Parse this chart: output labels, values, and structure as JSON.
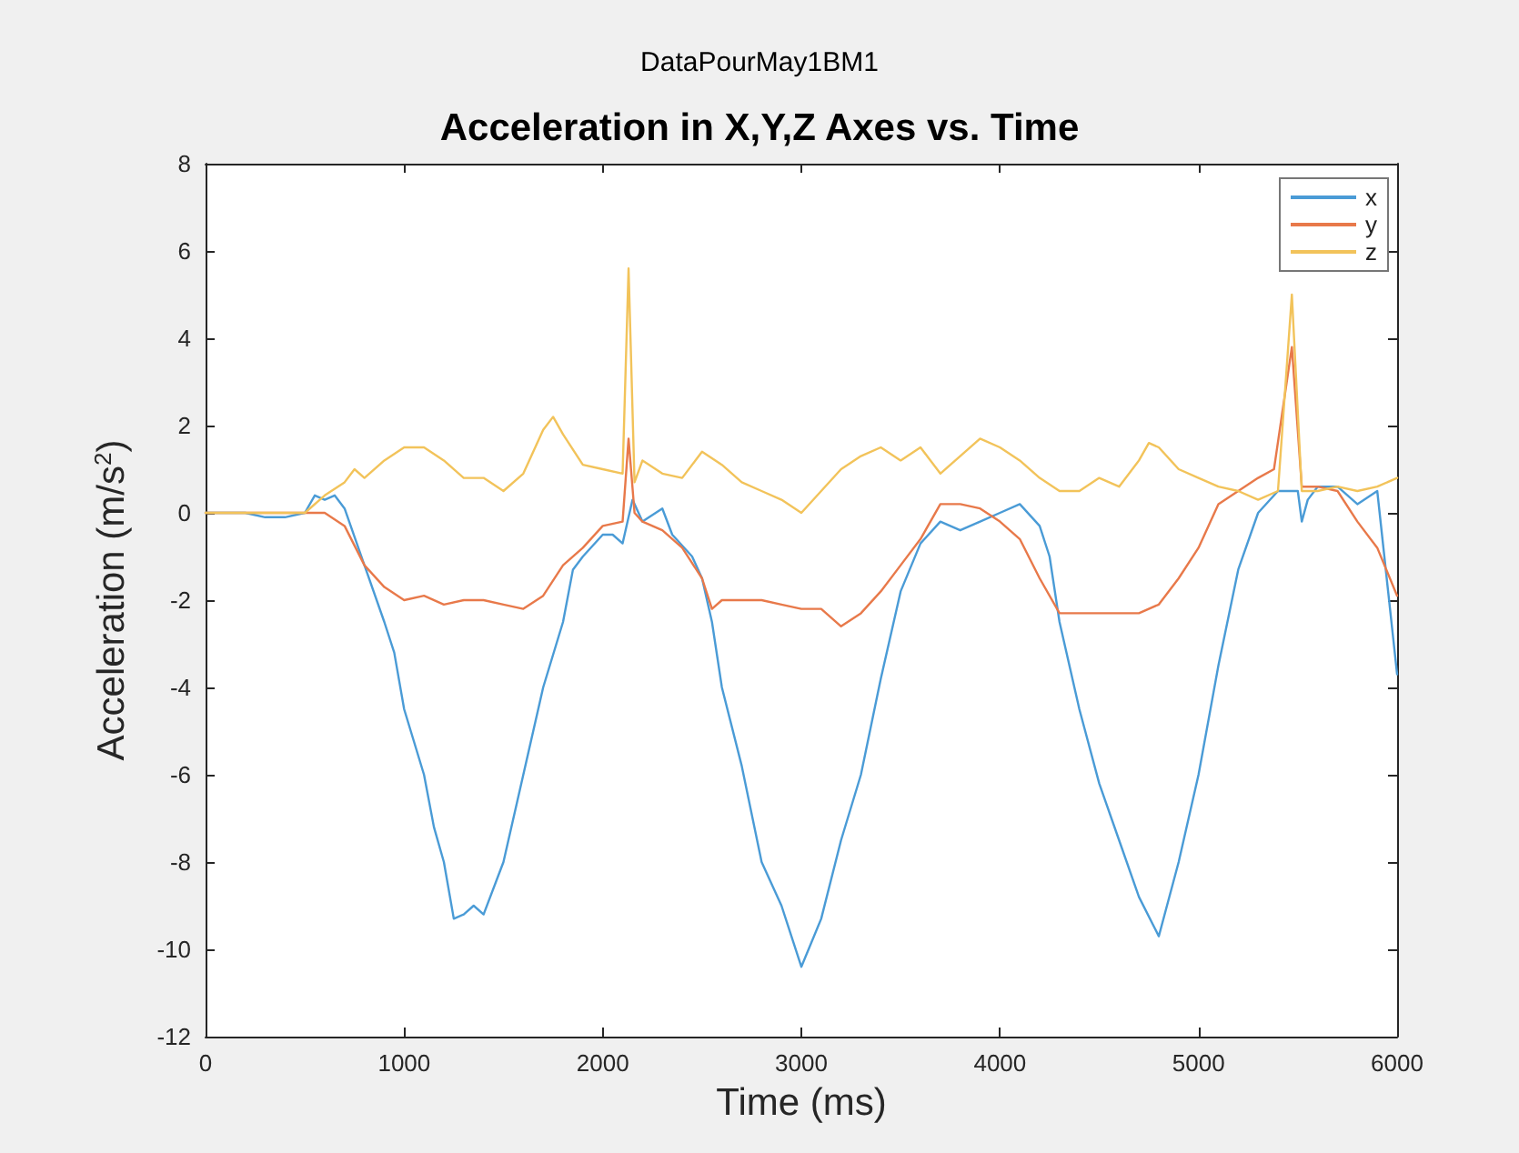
{
  "chart_data": {
    "type": "line",
    "title": "Acceleration in X,Y,Z Axes vs. Time",
    "subtitle": "DataPourMay1BM1",
    "xlabel": "Time (ms)",
    "ylabel": "Acceleration (m/s$^{2}$)",
    "xlim": [
      0,
      6000
    ],
    "xticks": [
      0,
      1000,
      2000,
      3000,
      4000,
      5000,
      6000
    ],
    "ylim": [
      -12,
      8
    ],
    "yticks": [
      -12,
      -10,
      -8,
      -6,
      -4,
      -2,
      0,
      2,
      4,
      6,
      8
    ],
    "grid": false,
    "legend": "top right",
    "marker": "none",
    "line_style": "solid",
    "series": [
      {
        "name": "x",
        "color": "#4a9bd6",
        "x": [
          0,
          100,
          200,
          300,
          400,
          500,
          550,
          600,
          650,
          700,
          800,
          900,
          950,
          1000,
          1100,
          1150,
          1200,
          1250,
          1300,
          1350,
          1400,
          1500,
          1600,
          1700,
          1800,
          1850,
          1900,
          2000,
          2050,
          2100,
          2150,
          2200,
          2300,
          2350,
          2450,
          2500,
          2550,
          2600,
          2700,
          2800,
          2900,
          3000,
          3100,
          3200,
          3300,
          3400,
          3500,
          3600,
          3700,
          3800,
          3900,
          4000,
          4100,
          4200,
          4250,
          4300,
          4400,
          4500,
          4600,
          4700,
          4800,
          4900,
          5000,
          5100,
          5200,
          5300,
          5400,
          5500,
          5520,
          5550,
          5600,
          5700,
          5800,
          5900,
          6000
        ],
        "values": [
          0,
          0,
          0,
          -0.1,
          -0.1,
          0,
          0.4,
          0.3,
          0.4,
          0.1,
          -1.2,
          -2.5,
          -3.2,
          -4.5,
          -6,
          -7.2,
          -8,
          -9.3,
          -9.2,
          -9,
          -9.2,
          -8,
          -6,
          -4,
          -2.5,
          -1.3,
          -1,
          -0.5,
          -0.5,
          -0.7,
          0.3,
          -0.2,
          0.1,
          -0.5,
          -1,
          -1.5,
          -2.5,
          -4,
          -5.8,
          -8,
          -9,
          -10.4,
          -9.3,
          -7.5,
          -6,
          -3.8,
          -1.8,
          -0.7,
          -0.2,
          -0.4,
          -0.2,
          0,
          0.2,
          -0.3,
          -1,
          -2.5,
          -4.5,
          -6.2,
          -7.5,
          -8.8,
          -9.7,
          -8,
          -6,
          -3.5,
          -1.3,
          0,
          0.5,
          0.5,
          -0.2,
          0.3,
          0.6,
          0.6,
          0.2,
          0.5,
          -3.7
        ]
      },
      {
        "name": "y",
        "color": "#e8794a",
        "x": [
          0,
          500,
          600,
          700,
          800,
          900,
          1000,
          1100,
          1200,
          1300,
          1400,
          1500,
          1600,
          1700,
          1800,
          1900,
          2000,
          2100,
          2130,
          2160,
          2200,
          2300,
          2400,
          2500,
          2550,
          2600,
          2700,
          2800,
          2900,
          3000,
          3100,
          3200,
          3300,
          3400,
          3500,
          3600,
          3700,
          3800,
          3900,
          4000,
          4100,
          4200,
          4300,
          4400,
          4500,
          4600,
          4700,
          4800,
          4900,
          5000,
          5100,
          5200,
          5300,
          5380,
          5470,
          5520,
          5600,
          5700,
          5800,
          5900,
          6000
        ],
        "values": [
          0,
          0,
          0,
          -0.3,
          -1.2,
          -1.7,
          -2,
          -1.9,
          -2.1,
          -2,
          -2,
          -2.1,
          -2.2,
          -1.9,
          -1.2,
          -0.8,
          -0.3,
          -0.2,
          1.7,
          0,
          -0.2,
          -0.4,
          -0.8,
          -1.5,
          -2.2,
          -2,
          -2,
          -2,
          -2.1,
          -2.2,
          -2.2,
          -2.6,
          -2.3,
          -1.8,
          -1.2,
          -0.6,
          0.2,
          0.2,
          0.1,
          -0.2,
          -0.6,
          -1.5,
          -2.3,
          -2.3,
          -2.3,
          -2.3,
          -2.3,
          -2.1,
          -1.5,
          -0.8,
          0.2,
          0.5,
          0.8,
          1,
          3.8,
          0.6,
          0.6,
          0.5,
          -0.2,
          -0.8,
          -1.9
        ]
      },
      {
        "name": "z",
        "color": "#f2c35a",
        "x": [
          0,
          500,
          600,
          700,
          750,
          800,
          900,
          1000,
          1100,
          1200,
          1300,
          1400,
          1500,
          1600,
          1700,
          1750,
          1800,
          1900,
          2000,
          2100,
          2130,
          2160,
          2200,
          2300,
          2400,
          2500,
          2600,
          2700,
          2800,
          2900,
          3000,
          3100,
          3200,
          3300,
          3400,
          3500,
          3600,
          3700,
          3800,
          3900,
          4000,
          4100,
          4200,
          4300,
          4400,
          4500,
          4600,
          4700,
          4750,
          4800,
          4900,
          5000,
          5100,
          5200,
          5300,
          5400,
          5470,
          5520,
          5600,
          5700,
          5800,
          5900,
          6000
        ],
        "values": [
          0,
          0,
          0.4,
          0.7,
          1,
          0.8,
          1.2,
          1.5,
          1.5,
          1.2,
          0.8,
          0.8,
          0.5,
          0.9,
          1.9,
          2.2,
          1.8,
          1.1,
          1,
          0.9,
          5.6,
          0.7,
          1.2,
          0.9,
          0.8,
          1.4,
          1.1,
          0.7,
          0.5,
          0.3,
          0,
          0.5,
          1,
          1.3,
          1.5,
          1.2,
          1.5,
          0.9,
          1.3,
          1.7,
          1.5,
          1.2,
          0.8,
          0.5,
          0.5,
          0.8,
          0.6,
          1.2,
          1.6,
          1.5,
          1,
          0.8,
          0.6,
          0.5,
          0.3,
          0.5,
          5,
          0.5,
          0.5,
          0.6,
          0.5,
          0.6,
          0.8
        ]
      }
    ]
  }
}
